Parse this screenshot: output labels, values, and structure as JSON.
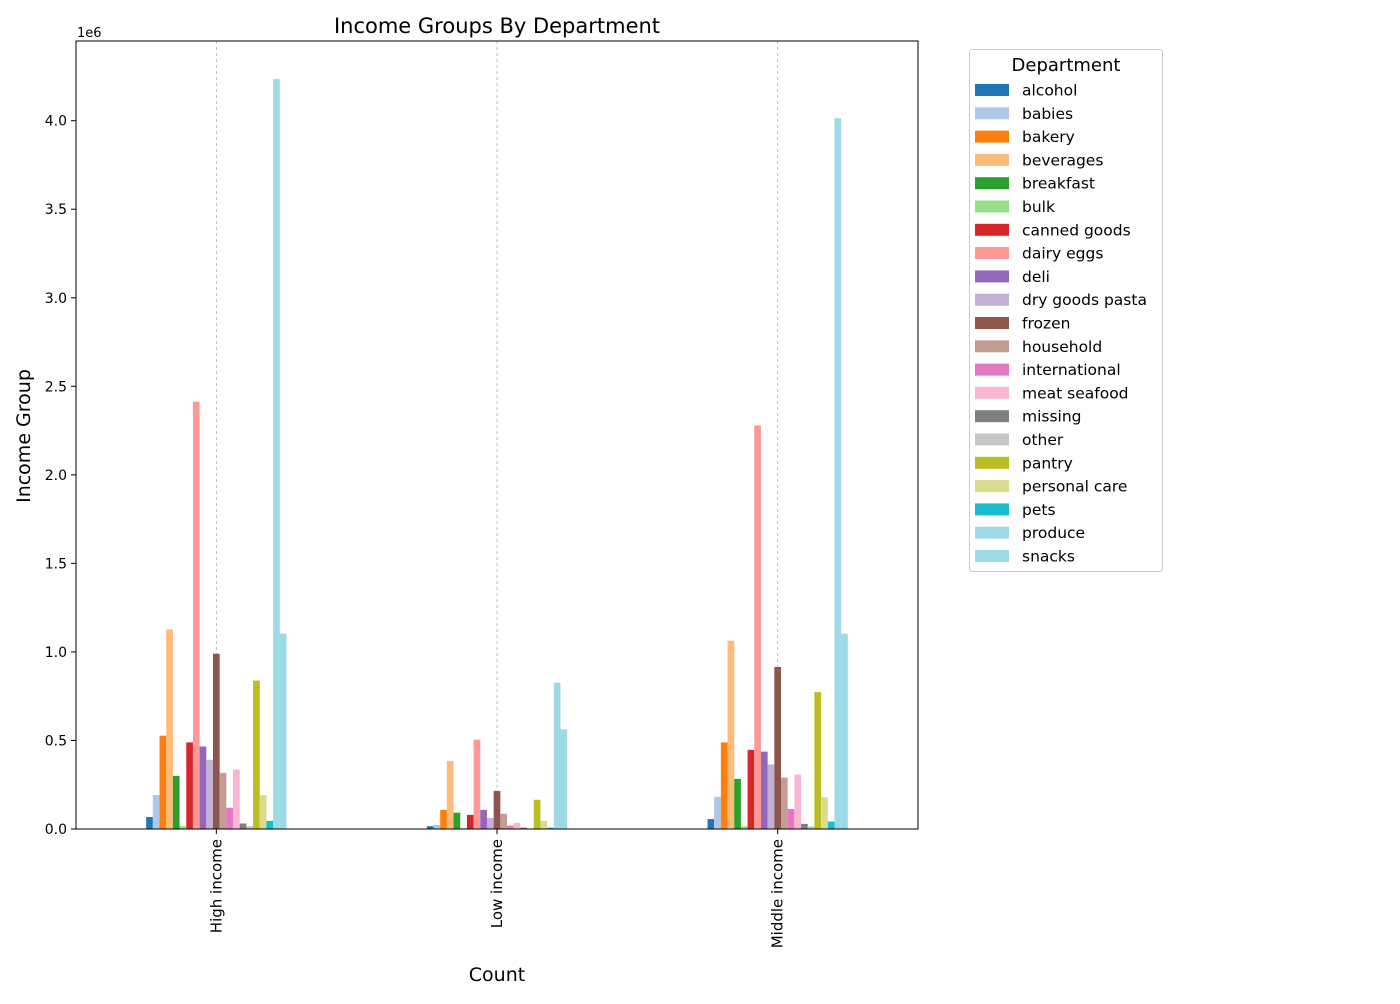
{
  "chart_data": {
    "type": "bar",
    "title": "Income Groups By Department",
    "xlabel": "Count",
    "ylabel": "Income Group",
    "y_offset_label": "1e6",
    "y_scale": 1000000,
    "ylim": [
      0,
      4.45
    ],
    "yticks": [
      "0.0",
      "0.5",
      "1.0",
      "1.5",
      "2.0",
      "2.5",
      "3.0",
      "3.5",
      "4.0"
    ],
    "grid": "vertical dashed",
    "legend": {
      "title": "Department",
      "position": "right-outside"
    },
    "categories": [
      "High income",
      "Low income",
      "Middle income"
    ],
    "series": [
      {
        "name": "alcohol",
        "color": "#1f77b4",
        "values": [
          0.068,
          0.016,
          0.056
        ]
      },
      {
        "name": "babies",
        "color": "#aec7e8",
        "values": [
          0.192,
          0.023,
          0.182
        ]
      },
      {
        "name": "bakery",
        "color": "#ff7f0e",
        "values": [
          0.527,
          0.108,
          0.489
        ]
      },
      {
        "name": "beverages",
        "color": "#ffbb78",
        "values": [
          1.127,
          0.384,
          1.063
        ]
      },
      {
        "name": "breakfast",
        "color": "#2ca02c",
        "values": [
          0.3,
          0.092,
          0.283
        ]
      },
      {
        "name": "bulk",
        "color": "#98df8a",
        "values": [
          0.016,
          0.004,
          0.016
        ]
      },
      {
        "name": "canned goods",
        "color": "#d62728",
        "values": [
          0.489,
          0.08,
          0.447
        ]
      },
      {
        "name": "dairy eggs",
        "color": "#ff9896",
        "values": [
          2.413,
          0.505,
          2.279
        ]
      },
      {
        "name": "deli",
        "color": "#9467bd",
        "values": [
          0.466,
          0.108,
          0.437
        ]
      },
      {
        "name": "dry goods pasta",
        "color": "#c5b0d5",
        "values": [
          0.391,
          0.062,
          0.364
        ]
      },
      {
        "name": "frozen",
        "color": "#8c564b",
        "values": [
          0.99,
          0.215,
          0.915
        ]
      },
      {
        "name": "household",
        "color": "#c49c94",
        "values": [
          0.317,
          0.086,
          0.29
        ]
      },
      {
        "name": "international",
        "color": "#e377c2",
        "values": [
          0.12,
          0.019,
          0.113
        ]
      },
      {
        "name": "meat seafood",
        "color": "#f7b6d2",
        "values": [
          0.336,
          0.034,
          0.307
        ]
      },
      {
        "name": "missing",
        "color": "#7f7f7f",
        "values": [
          0.031,
          0.008,
          0.029
        ]
      },
      {
        "name": "other",
        "color": "#c7c7c7",
        "values": [
          0.016,
          0.002,
          0.015
        ]
      },
      {
        "name": "pantry",
        "color": "#bcbd22",
        "values": [
          0.838,
          0.165,
          0.773
        ]
      },
      {
        "name": "personal care",
        "color": "#dbdb8d",
        "values": [
          0.192,
          0.045,
          0.18
        ]
      },
      {
        "name": "pets",
        "color": "#17becf",
        "values": [
          0.046,
          0.008,
          0.042
        ]
      },
      {
        "name": "produce",
        "color": "#9edae5",
        "values": [
          4.235,
          0.826,
          4.014
        ]
      },
      {
        "name": "snacks",
        "color": "#9edae5",
        "values": [
          1.103,
          0.563,
          1.103
        ]
      }
    ]
  }
}
